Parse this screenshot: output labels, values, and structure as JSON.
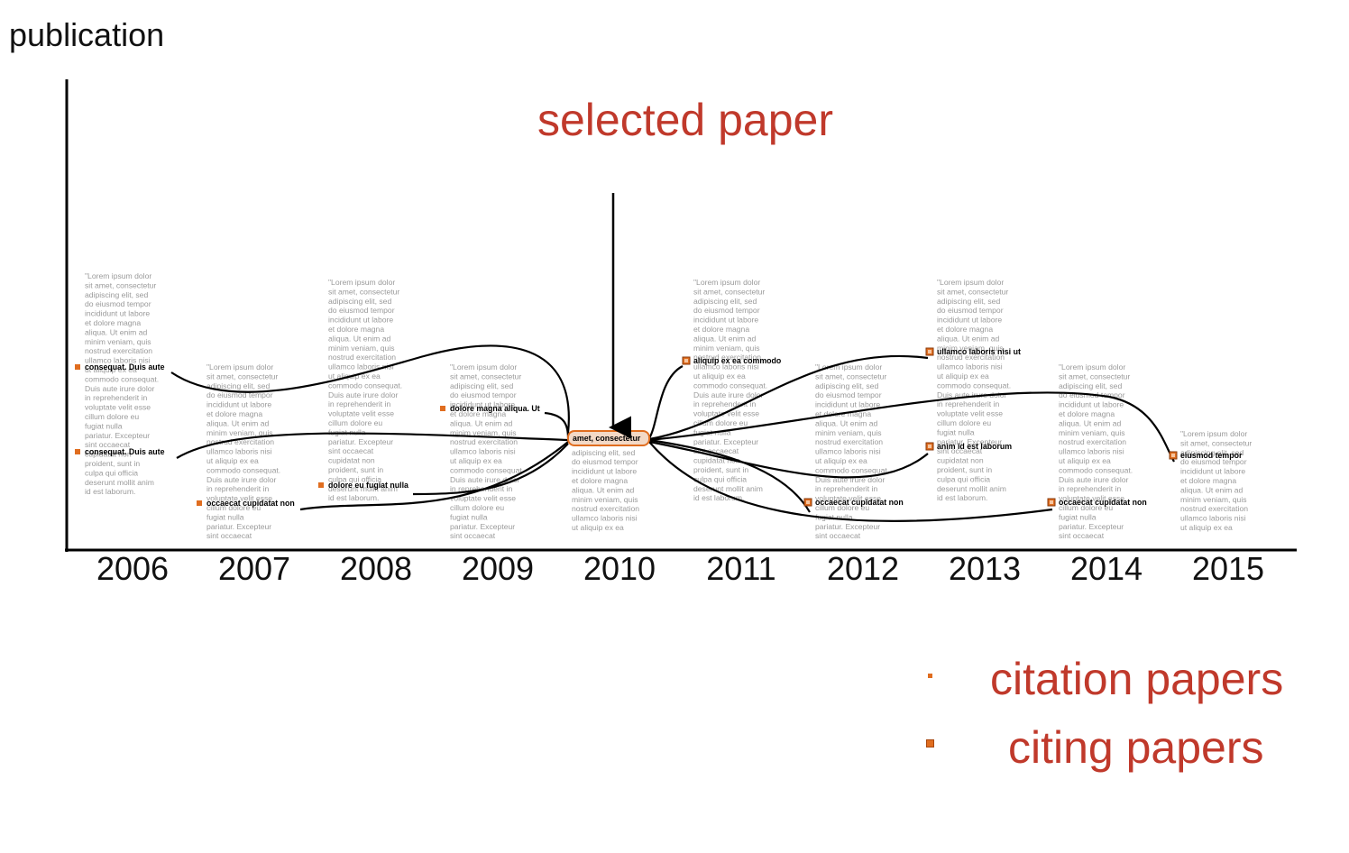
{
  "y_axis_label": "publication",
  "selected_label": "selected paper",
  "legend": {
    "citation": "citation papers",
    "citing": "citing papers"
  },
  "colors": {
    "accent": "#c0392b",
    "marker": "#e06d1f",
    "filler": "#9a9a9a",
    "link": "#000000"
  },
  "years": [
    "2006",
    "2007",
    "2008",
    "2009",
    "2010",
    "2011",
    "2012",
    "2013",
    "2014",
    "2015"
  ],
  "filler_text": "\"Lorem ipsum dolor sit amet, consectetur adipiscing elit, sed do eiusmod tempor incididunt ut labore et dolore magna aliqua. Ut enim ad minim veniam, quis nostrud exercitation ullamco laboris nisi ut aliquip ex ea commodo consequat. Duis aute irure dolor in reprehenderit in voluptate velit esse cillum dolore eu fugiat nulla pariatur. Excepteur sint occaecat cupidatat non proident, sunt in culpa qui officia deserunt mollit anim id est laborum.",
  "selected_paper": {
    "year": "2010",
    "title": "amet, consectetur"
  },
  "citation_papers": [
    {
      "year": "2006",
      "title": "consequat. Duis aute"
    },
    {
      "year": "2006",
      "title": "consequat. Duis aute"
    },
    {
      "year": "2007",
      "title": "occaecat cupidatat non"
    },
    {
      "year": "2008",
      "title": "dolore eu fugiat nulla"
    },
    {
      "year": "2009",
      "title": "dolore magna aliqua. Ut"
    }
  ],
  "citing_papers": [
    {
      "year": "2011",
      "title": "aliquip ex ea commodo"
    },
    {
      "year": "2012",
      "title": "occaecat cupidatat non"
    },
    {
      "year": "2013",
      "title": "ullamco laboris nisi ut"
    },
    {
      "year": "2013",
      "title": "anim id est laborum"
    },
    {
      "year": "2014",
      "title": "occaecat cupidatat non"
    },
    {
      "year": "2015",
      "title": "eiusmod tempor"
    }
  ]
}
